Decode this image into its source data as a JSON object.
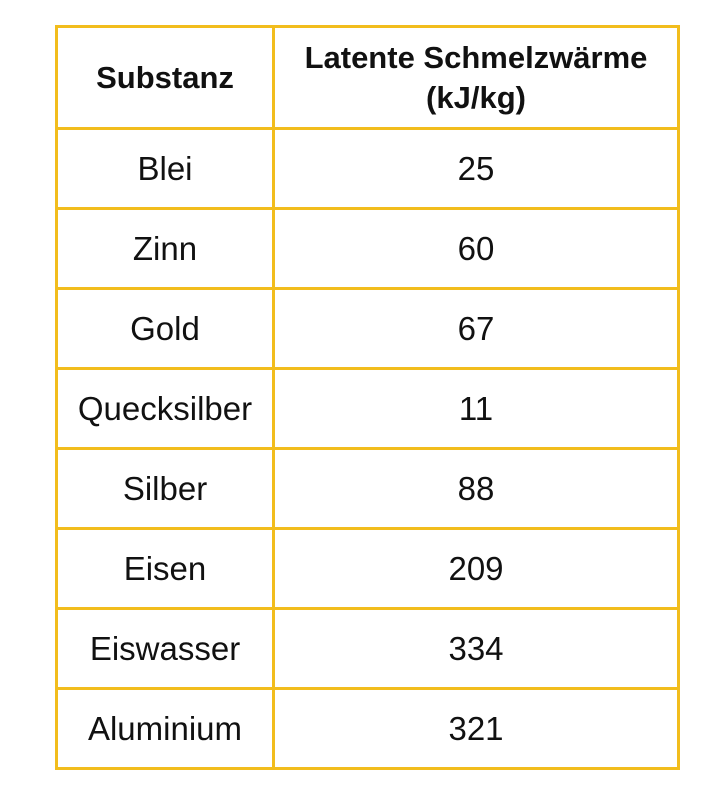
{
  "table": {
    "headers": {
      "substance": "Substanz",
      "latent_heat_line1": "Latente Schmelzwärme",
      "latent_heat_line2": "(kJ/kg)"
    },
    "rows": [
      {
        "substance": "Blei",
        "value": "25"
      },
      {
        "substance": "Zinn",
        "value": "60"
      },
      {
        "substance": "Gold",
        "value": "67"
      },
      {
        "substance": "Quecksilber",
        "value": "11"
      },
      {
        "substance": "Silber",
        "value": "88"
      },
      {
        "substance": "Eisen",
        "value": "209"
      },
      {
        "substance": "Eiswasser",
        "value": "334"
      },
      {
        "substance": "Aluminium",
        "value": "321"
      }
    ]
  },
  "colors": {
    "border": "#f2bd1d",
    "text": "#111111",
    "background": "#ffffff"
  }
}
